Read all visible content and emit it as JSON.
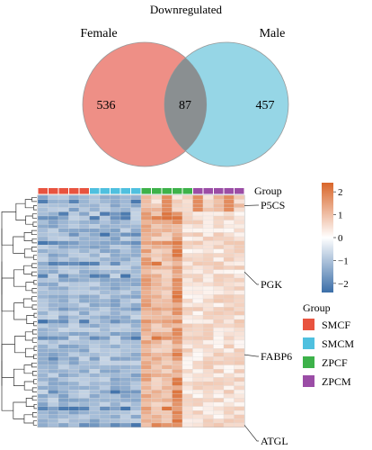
{
  "venn": {
    "title": "Downregulated",
    "left_label": "Female",
    "right_label": "Male",
    "left_only": "536",
    "overlap": "87",
    "right_only": "457",
    "left_color": "#ee8f86",
    "right_color": "#88d0e2"
  },
  "heatmap": {
    "group_header": "Group",
    "columns": 20,
    "rows": 56,
    "column_groups": [
      "SMCF",
      "SMCF",
      "SMCF",
      "SMCF",
      "SMCF",
      "SMCM",
      "SMCM",
      "SMCM",
      "SMCM",
      "SMCM",
      "ZPCF",
      "ZPCF",
      "ZPCF",
      "ZPCF",
      "ZPCF",
      "ZPCM",
      "ZPCM",
      "ZPCM",
      "ZPCM",
      "ZPCM"
    ],
    "gene_labels": [
      {
        "label": "P5CS",
        "row": 2
      },
      {
        "label": "PGK",
        "row": 18
      },
      {
        "label": "FABP6",
        "row": 38
      },
      {
        "label": "ATGL",
        "row": 55
      }
    ],
    "colorbar": {
      "ticks": [
        "2",
        "1",
        "0",
        "−1",
        "−2"
      ],
      "values": [
        2,
        1,
        0,
        -1,
        -2
      ],
      "low_color": "#3b6ea8",
      "mid_color": "#ffffff",
      "high_color": "#d9662a"
    },
    "legend": {
      "title": "Group",
      "items": [
        {
          "label": "SMCF",
          "color": "#e8533f"
        },
        {
          "label": "SMCM",
          "color": "#4fc0df"
        },
        {
          "label": "ZPCF",
          "color": "#3db24a"
        },
        {
          "label": "ZPCM",
          "color": "#9b4da6"
        }
      ]
    }
  }
}
